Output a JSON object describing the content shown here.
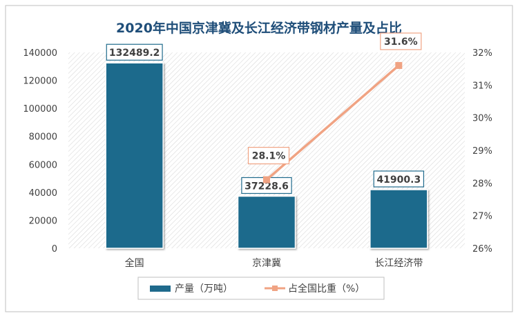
{
  "chart_data": {
    "type": "bar+line",
    "title": "2020年中国京津冀及长江经济带钢材产量及占比",
    "categories": [
      "全国",
      "京津冀",
      "长江经济带"
    ],
    "series": [
      {
        "name": "产量（万吨）",
        "type": "bar",
        "axis": "left",
        "values": [
          132489.2,
          37228.6,
          41900.3
        ],
        "labels": [
          "132489.2",
          "37228.6",
          "41900.3"
        ]
      },
      {
        "name": "占全国比重（%）",
        "type": "line",
        "axis": "right",
        "values": [
          null,
          28.1,
          31.6
        ],
        "labels": [
          "",
          "28.1%",
          "31.6%"
        ]
      }
    ],
    "y_left": {
      "min": 0,
      "max": 140000,
      "step": 20000,
      "ticks": [
        "0",
        "20000",
        "40000",
        "60000",
        "80000",
        "100000",
        "120000",
        "140000"
      ]
    },
    "y_right": {
      "min": 26,
      "max": 32,
      "step": 1,
      "ticks": [
        "26%",
        "27%",
        "28%",
        "29%",
        "30%",
        "31%",
        "32%"
      ]
    },
    "legend": "bottom",
    "grid": false,
    "colors": {
      "bar": "#1f6a8c",
      "line": "#f0a383",
      "title": "#1f4e79",
      "label_border_bar": "#1f6a8c",
      "label_border_line": "#f0a383"
    }
  }
}
